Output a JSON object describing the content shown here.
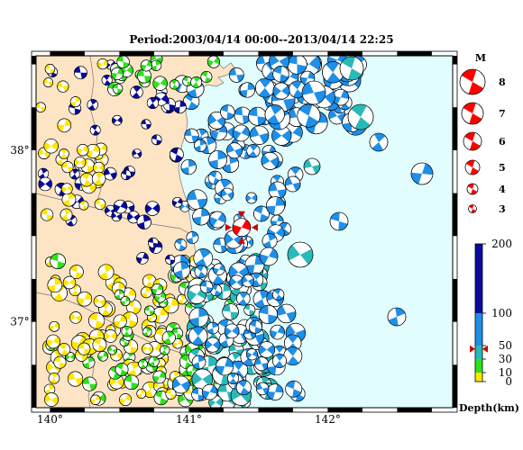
{
  "title": "Period:2003/04/14 00:00--2013/04/14 22:25",
  "map": {
    "lon_range": [
      139.9,
      142.9
    ],
    "lat_range": [
      36.5,
      38.55
    ],
    "x_ticks": [
      {
        "value": 140,
        "label": "140°"
      },
      {
        "value": 141,
        "label": "141°"
      },
      {
        "value": 142,
        "label": "142°"
      }
    ],
    "y_ticks": [
      {
        "value": 38,
        "label": "38°"
      },
      {
        "value": 37,
        "label": "37°"
      }
    ],
    "land_color": "#fde4c4",
    "sea_color": "#e1fdfe",
    "highlight_color": "#ff0000"
  },
  "magnitude_legend": {
    "title": "M",
    "items": [
      {
        "label": "8",
        "value": 8
      },
      {
        "label": "7",
        "value": 7
      },
      {
        "label": "6",
        "value": 6
      },
      {
        "label": "5",
        "value": 5
      },
      {
        "label": "4",
        "value": 4
      },
      {
        "label": "3",
        "value": 3
      }
    ]
  },
  "depth_legend": {
    "title": "Depth(km)",
    "ticks": [
      {
        "label": "200",
        "value": 200
      },
      {
        "label": "100",
        "value": 100
      },
      {
        "label": "50",
        "value": 50
      },
      {
        "label": "30",
        "value": 30
      },
      {
        "label": "10",
        "value": 10
      },
      {
        "label": "0",
        "value": 0
      }
    ],
    "bands": [
      {
        "from": 0,
        "to": 10,
        "color": "#ffe600"
      },
      {
        "from": 10,
        "to": 30,
        "color": "#2ee21b"
      },
      {
        "from": 30,
        "to": 50,
        "color": "#2ab9b9"
      },
      {
        "from": 50,
        "to": 100,
        "color": "#1f8fe8"
      },
      {
        "from": 100,
        "to": 200,
        "color": "#0a0a9c"
      }
    ],
    "marker_depth": 45,
    "marker_color": "#cc0000"
  },
  "highlight_event": {
    "lon": 141.38,
    "lat": 37.55,
    "depth_km": 45,
    "magnitude": 6
  }
}
